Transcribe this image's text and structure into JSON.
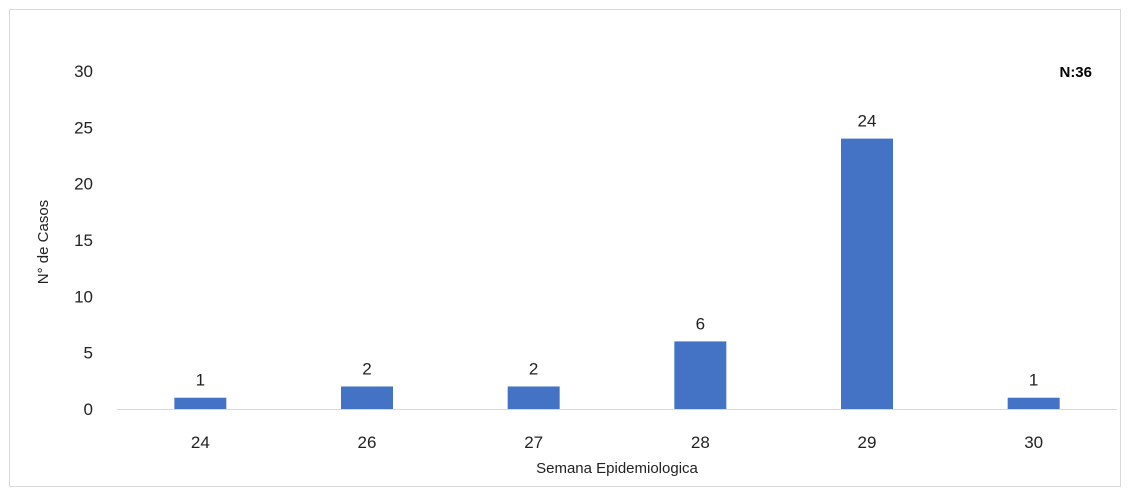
{
  "chart_data": {
    "type": "bar",
    "categories": [
      "24",
      "26",
      "27",
      "28",
      "29",
      "30"
    ],
    "values": [
      1,
      2,
      2,
      6,
      24,
      1
    ],
    "data_labels": [
      "1",
      "2",
      "2",
      "6",
      "24",
      "1"
    ],
    "y_ticks": [
      "0",
      "5",
      "10",
      "15",
      "20",
      "25",
      "30"
    ],
    "ylim": [
      0,
      30
    ],
    "xlabel": "Semana Epidemiologica",
    "ylabel": "N° de Casos",
    "annotation": "N:36",
    "grid": false,
    "legend": "none",
    "bar_color": "#4472c4",
    "axis_color": "#d9d9d9"
  }
}
